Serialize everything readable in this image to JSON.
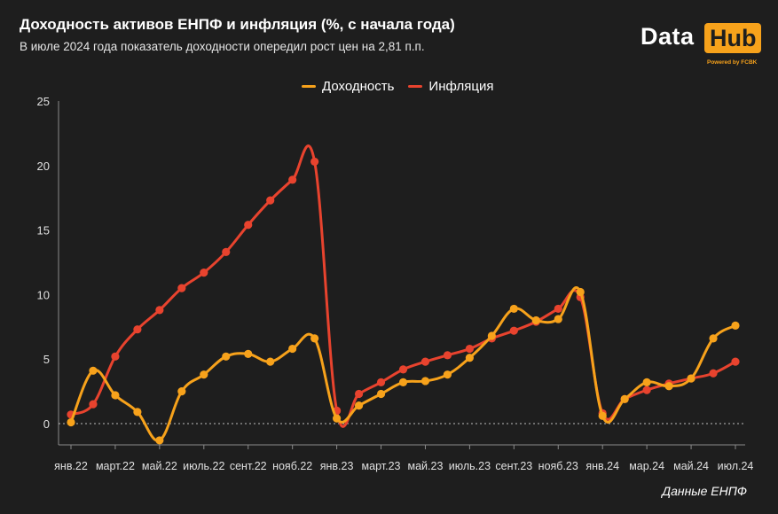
{
  "header": {
    "title": "Доходность активов ЕНПФ и инфляция (%, с начала года)",
    "subtitle": "В июле 2024 года показатель доходности опередил рост цен на 2,81 п.п."
  },
  "logo": {
    "word1": "Data",
    "word2": "Hub",
    "powered": "Powered by FCBK"
  },
  "source": "Данные ЕНПФ",
  "colors": {
    "background": "#1e1e1e",
    "yield": "#f7a21b",
    "inflation": "#e8432e",
    "axis_text": "#e0e0e0"
  },
  "chart_data": {
    "type": "line",
    "ylim": [
      -2,
      25
    ],
    "yticks": [
      0,
      5,
      10,
      15,
      20,
      25
    ],
    "xticks": [
      "янв.22",
      "март.22",
      "май.22",
      "июль.22",
      "сент.22",
      "нояб.22",
      "янв.23",
      "март.23",
      "май.23",
      "июль.23",
      "сент.23",
      "нояб.23",
      "янв.24",
      "мар.24",
      "май.24",
      "июл.24"
    ],
    "zero_line": "dotted",
    "legend_position": "top-center",
    "x": [
      "2022-01",
      "2022-02",
      "2022-03",
      "2022-04",
      "2022-05",
      "2022-06",
      "2022-07",
      "2022-08",
      "2022-09",
      "2022-10",
      "2022-11",
      "2022-12",
      "2023-01",
      "2023-02",
      "2023-03",
      "2023-04",
      "2023-05",
      "2023-06",
      "2023-07",
      "2023-08",
      "2023-09",
      "2023-10",
      "2023-11",
      "2023-12",
      "2024-01",
      "2024-02",
      "2024-03",
      "2024-04",
      "2024-05",
      "2024-06",
      "2024-07"
    ],
    "series": [
      {
        "name": "Доходность",
        "color": "#f7a21b",
        "values": [
          0.1,
          4.1,
          2.2,
          0.9,
          -1.3,
          2.5,
          3.8,
          5.2,
          5.4,
          4.8,
          5.8,
          6.6,
          0.4,
          1.4,
          2.3,
          3.2,
          3.3,
          3.8,
          5.1,
          6.8,
          8.9,
          8.0,
          8.1,
          10.2,
          0.6,
          1.9,
          3.2,
          2.9,
          3.5,
          6.6,
          7.6
        ]
      },
      {
        "name": "Инфляция",
        "color": "#e8432e",
        "values": [
          0.7,
          1.5,
          5.2,
          7.3,
          8.8,
          10.5,
          11.7,
          13.3,
          15.4,
          17.3,
          18.9,
          20.3,
          1.0,
          2.3,
          3.2,
          4.2,
          4.8,
          5.3,
          5.8,
          6.6,
          7.2,
          7.9,
          8.9,
          9.8,
          0.8,
          1.9,
          2.6,
          3.1,
          3.5,
          3.9,
          4.8
        ]
      }
    ]
  }
}
